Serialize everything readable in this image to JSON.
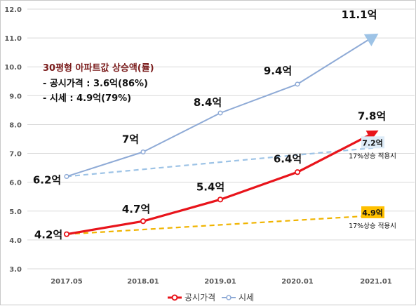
{
  "chart_data": {
    "type": "line",
    "categories": [
      "2017.05",
      "2018.01",
      "2019.01",
      "2020.01",
      "2021.01"
    ],
    "ylim": [
      3.0,
      12.0
    ],
    "y_ticks": [
      "3.0",
      "4.0",
      "5.0",
      "6.0",
      "7.0",
      "8.0",
      "9.0",
      "10.0",
      "11.0",
      "12.0"
    ],
    "grid": true,
    "legend_position": "bottom",
    "series": [
      {
        "name": "공시가격",
        "color": "#e8141b",
        "values": [
          4.2,
          4.65,
          5.4,
          6.35,
          7.75
        ],
        "labels": [
          "4.2억",
          "4.7억",
          "5.4억",
          "6.4억",
          "7.8억"
        ]
      },
      {
        "name": "시세",
        "color": "#8eaad6",
        "values": [
          6.2,
          7.05,
          8.4,
          9.4,
          11.1
        ],
        "labels": [
          "6.2억",
          "7억",
          "8.4억",
          "9.4억",
          "11.1억"
        ]
      }
    ],
    "projections": [
      {
        "color": "#f0b400",
        "from": 4.2,
        "to": 4.85,
        "label": "4.9억",
        "label_bg": "#ffc000",
        "note": "17%상승 적용시"
      },
      {
        "color": "#9dc3e6",
        "from": 6.2,
        "to": 7.2,
        "label": "7.2억",
        "label_bg": "#ddebf7",
        "note": "17%상승 적용시"
      }
    ],
    "annotation": {
      "title": "30평형 아파트값 상승액(률)",
      "lines": [
        "- 공시가격 : 3.6억(86%)",
        "- 시세 : 4.9억(79%)"
      ]
    }
  }
}
